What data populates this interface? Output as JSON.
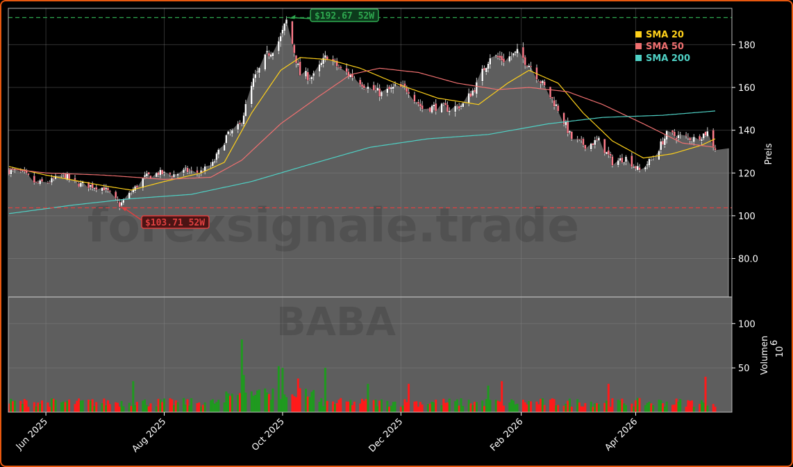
{
  "chart_data": {
    "type": "candlestick",
    "ticker": "BABA",
    "watermark": "forexsignale.trade",
    "price_panel": {
      "ylabel": "Preis",
      "ylim": [
        62,
        197
      ],
      "yticks": [
        80,
        100,
        120,
        140,
        160,
        180
      ],
      "ytick_labels": [
        "80.0",
        "100",
        "120",
        "140",
        "160",
        "180"
      ],
      "last_close": 131.5
    },
    "volume_panel": {
      "ylabel": "Volumen",
      "scale_label": "10",
      "scale_exponent": "6",
      "ylim": [
        0,
        130
      ],
      "yticks": [
        50,
        100
      ],
      "ytick_labels": [
        "50",
        "100"
      ]
    },
    "x": {
      "start": "2025-05-13",
      "end": "2026-05-12",
      "ticks": [
        {
          "date": "2025-06-01",
          "label": "Jun 2025"
        },
        {
          "date": "2025-08-01",
          "label": "Aug 2025"
        },
        {
          "date": "2025-10-01",
          "label": "Oct 2025"
        },
        {
          "date": "2025-12-01",
          "label": "Dec 2025"
        },
        {
          "date": "2026-02-01",
          "label": "Feb 2026"
        },
        {
          "date": "2026-04-01",
          "label": "Apr 2026"
        }
      ]
    },
    "annotations": {
      "high": {
        "value": 192.67,
        "label": "$192.67 52W",
        "date": "2025-10-03",
        "color": "#2ea84f"
      },
      "low": {
        "value": 103.71,
        "label": "$103.71 52W",
        "date": "2025-07-09",
        "color": "#e04040"
      }
    },
    "legend": [
      {
        "name": "SMA 20",
        "color": "#ffd11a"
      },
      {
        "name": "SMA 50",
        "color": "#f07070"
      },
      {
        "name": "SMA 200",
        "color": "#4fd1c5"
      }
    ],
    "close_path": [
      [
        "2025-05-13",
        121
      ],
      [
        "2025-05-20",
        120
      ],
      [
        "2025-05-27",
        115
      ],
      [
        "2025-06-03",
        116
      ],
      [
        "2025-06-10",
        119
      ],
      [
        "2025-06-17",
        115
      ],
      [
        "2025-06-24",
        114
      ],
      [
        "2025-07-01",
        113
      ],
      [
        "2025-07-09",
        105
      ],
      [
        "2025-07-15",
        111
      ],
      [
        "2025-07-22",
        118
      ],
      [
        "2025-07-29",
        120
      ],
      [
        "2025-08-05",
        119
      ],
      [
        "2025-08-12",
        121
      ],
      [
        "2025-08-19",
        120
      ],
      [
        "2025-08-26",
        124
      ],
      [
        "2025-09-02",
        137
      ],
      [
        "2025-09-09",
        142
      ],
      [
        "2025-09-16",
        163
      ],
      [
        "2025-09-23",
        175
      ],
      [
        "2025-09-30",
        183
      ],
      [
        "2025-10-03",
        191
      ],
      [
        "2025-10-10",
        166
      ],
      [
        "2025-10-17",
        165
      ],
      [
        "2025-10-24",
        175
      ],
      [
        "2025-10-31",
        168
      ],
      [
        "2025-11-07",
        165
      ],
      [
        "2025-11-14",
        160
      ],
      [
        "2025-11-21",
        157
      ],
      [
        "2025-11-28",
        160
      ],
      [
        "2025-12-05",
        159
      ],
      [
        "2025-12-12",
        150
      ],
      [
        "2025-12-19",
        151
      ],
      [
        "2025-12-26",
        150
      ],
      [
        "2026-01-02",
        152
      ],
      [
        "2026-01-09",
        161
      ],
      [
        "2026-01-16",
        175
      ],
      [
        "2026-01-23",
        173
      ],
      [
        "2026-01-30",
        176
      ],
      [
        "2026-02-06",
        170
      ],
      [
        "2026-02-13",
        160
      ],
      [
        "2026-02-20",
        150
      ],
      [
        "2026-02-27",
        136
      ],
      [
        "2026-03-06",
        133
      ],
      [
        "2026-03-13",
        135
      ],
      [
        "2026-03-20",
        125
      ],
      [
        "2026-03-27",
        127
      ],
      [
        "2026-04-03",
        121
      ],
      [
        "2026-04-10",
        127
      ],
      [
        "2026-04-17",
        138
      ],
      [
        "2026-04-24",
        137
      ],
      [
        "2026-05-01",
        136
      ],
      [
        "2026-05-08",
        139
      ],
      [
        "2026-05-12",
        131.5
      ]
    ],
    "series": [
      {
        "name": "SMA 20",
        "values": [
          [
            "2025-05-13",
            123
          ],
          [
            "2025-06-01",
            119
          ],
          [
            "2025-07-01",
            114
          ],
          [
            "2025-07-15",
            112
          ],
          [
            "2025-08-01",
            116
          ],
          [
            "2025-08-20",
            120
          ],
          [
            "2025-09-01",
            125
          ],
          [
            "2025-09-15",
            148
          ],
          [
            "2025-09-30",
            168
          ],
          [
            "2025-10-10",
            174
          ],
          [
            "2025-10-25",
            173
          ],
          [
            "2025-11-10",
            169
          ],
          [
            "2025-12-01",
            161
          ],
          [
            "2025-12-20",
            155
          ],
          [
            "2026-01-10",
            152
          ],
          [
            "2026-01-25",
            162
          ],
          [
            "2026-02-05",
            168
          ],
          [
            "2026-02-20",
            162
          ],
          [
            "2026-03-05",
            148
          ],
          [
            "2026-03-20",
            135
          ],
          [
            "2026-04-05",
            127
          ],
          [
            "2026-04-20",
            129
          ],
          [
            "2026-05-05",
            133
          ],
          [
            "2026-05-12",
            136
          ]
        ]
      },
      {
        "name": "SMA 50",
        "values": [
          [
            "2025-05-13",
            122
          ],
          [
            "2025-06-01",
            120
          ],
          [
            "2025-07-01",
            119
          ],
          [
            "2025-08-01",
            117
          ],
          [
            "2025-08-25",
            118
          ],
          [
            "2025-09-10",
            126
          ],
          [
            "2025-09-30",
            143
          ],
          [
            "2025-10-20",
            156
          ],
          [
            "2025-11-05",
            166
          ],
          [
            "2025-11-20",
            169
          ],
          [
            "2025-12-10",
            167
          ],
          [
            "2025-12-30",
            162
          ],
          [
            "2026-01-20",
            159
          ],
          [
            "2026-02-05",
            160
          ],
          [
            "2026-02-25",
            158
          ],
          [
            "2026-03-15",
            152
          ],
          [
            "2026-04-05",
            143
          ],
          [
            "2026-04-25",
            134
          ],
          [
            "2026-05-12",
            132
          ]
        ]
      },
      {
        "name": "SMA 200",
        "values": [
          [
            "2025-05-13",
            101
          ],
          [
            "2025-06-15",
            105
          ],
          [
            "2025-07-15",
            108
          ],
          [
            "2025-08-15",
            110
          ],
          [
            "2025-09-15",
            116
          ],
          [
            "2025-10-15",
            124
          ],
          [
            "2025-11-15",
            132
          ],
          [
            "2025-12-15",
            136
          ],
          [
            "2026-01-15",
            138
          ],
          [
            "2026-02-15",
            143
          ],
          [
            "2026-03-15",
            146
          ],
          [
            "2026-04-15",
            147
          ],
          [
            "2026-05-12",
            149
          ]
        ]
      }
    ]
  }
}
